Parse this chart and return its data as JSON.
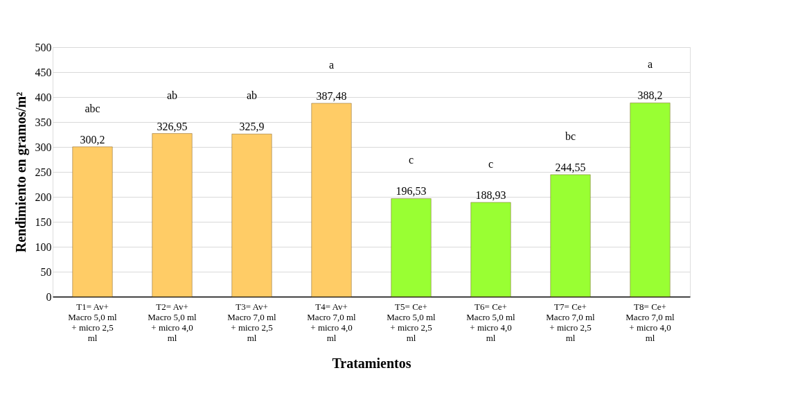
{
  "chart_data": {
    "type": "bar",
    "xlabel": "Tratamientos",
    "ylabel": "Rendimiento en gramos/m²",
    "categories": [
      "T1= Av+ Macro 5,0 ml + micro 2,5 ml",
      "T2= Av+ Macro 5,0 ml + micro 4,0 ml",
      "T3= Av+ Macro 7,0 ml + micro 2,5 ml",
      "T4= Av+ Macro 7,0 ml + micro 4,0 ml",
      "T5= Ce+ Macro 5,0 ml + micro 2,5 ml",
      "T6= Ce+ Macro 5,0 ml + micro 4,0 ml",
      "T7= Ce+ Macro 7,0 ml + micro 2,5 ml",
      "T8= Ce+ Macro 7,0 ml + micro 4,0 ml"
    ],
    "values": [
      300.2,
      326.95,
      325.9,
      387.48,
      196.53,
      188.93,
      244.55,
      388.2
    ],
    "value_labels": [
      "300,2",
      "326,95",
      "325,9",
      "387,48",
      "196,53",
      "188,93",
      "244,55",
      "388,2"
    ],
    "colors": [
      "#ffcc66",
      "#ffcc66",
      "#ffcc66",
      "#ffcc66",
      "#99ff33",
      "#99ff33",
      "#99ff33",
      "#99ff33"
    ],
    "annotations": [
      {
        "text": "abc",
        "x": "T1= Av+ Macro 5,0 ml + micro 2,5 ml",
        "y": 300.2
      },
      {
        "text": "ab",
        "x": "T2= Av+ Macro 5,0 ml + micro 4,0 ml",
        "y": 326.95
      },
      {
        "text": "ab",
        "x": "T3= Av+ Macro 7,0 ml + micro 2,5 ml",
        "y": 325.9
      },
      {
        "text": "a",
        "x": "T4= Av+ Macro 7,0 ml + micro 4,0 ml",
        "y": 387.48
      },
      {
        "text": "c",
        "x": "T5= Ce+ Macro 5,0 ml + micro 2,5 ml",
        "y": 196.53
      },
      {
        "text": "c",
        "x": "T6= Ce+ Macro 5,0 ml + micro 4,0 ml",
        "y": 188.93
      },
      {
        "text": "bc",
        "x": "T7= Ce+ Macro 7,0 ml + micro 2,5 ml",
        "y": 244.55
      },
      {
        "text": "a",
        "x": "T8= Ce+ Macro 7,0 ml + micro 4,0 ml",
        "y": 388.2
      }
    ],
    "ylim": [
      0,
      500
    ],
    "yticks": [
      0,
      50,
      100,
      150,
      200,
      250,
      300,
      350,
      400,
      450,
      500
    ],
    "grid": "y"
  }
}
